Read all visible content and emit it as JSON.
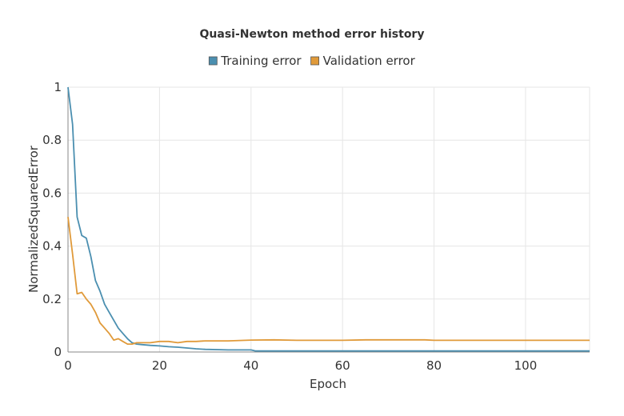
{
  "chart_data": {
    "type": "line",
    "title": "Quasi-Newton method error history",
    "xlabel": "Epoch",
    "ylabel": "NormalizedSquaredError",
    "xlim": [
      0,
      114
    ],
    "ylim": [
      0,
      1
    ],
    "x_ticks": [
      "0",
      "20",
      "40",
      "60",
      "80",
      "100"
    ],
    "y_ticks": [
      "0",
      "0.2",
      "0.4",
      "0.6",
      "0.8",
      "1"
    ],
    "grid": true,
    "legend_position": "top",
    "series": [
      {
        "name": "Training error",
        "color": "#4b8fb0",
        "x": [
          0,
          1,
          2,
          3,
          4,
          5,
          6,
          7,
          8,
          9,
          10,
          11,
          12,
          13,
          14,
          15,
          16,
          18,
          20,
          22,
          24,
          26,
          28,
          30,
          35,
          40,
          41,
          50,
          60,
          70,
          80,
          90,
          100,
          110,
          114
        ],
        "y": [
          1.0,
          0.86,
          0.51,
          0.44,
          0.43,
          0.36,
          0.27,
          0.23,
          0.18,
          0.15,
          0.12,
          0.09,
          0.07,
          0.05,
          0.035,
          0.03,
          0.028,
          0.025,
          0.023,
          0.02,
          0.018,
          0.015,
          0.012,
          0.01,
          0.008,
          0.008,
          0.004,
          0.004,
          0.004,
          0.004,
          0.004,
          0.004,
          0.004,
          0.004,
          0.004
        ]
      },
      {
        "name": "Validation error",
        "color": "#e09a3a",
        "x": [
          0,
          1,
          2,
          3,
          4,
          5,
          6,
          7,
          8,
          9,
          10,
          11,
          12,
          13,
          14,
          15,
          16,
          18,
          20,
          22,
          24,
          26,
          28,
          30,
          35,
          40,
          45,
          50,
          60,
          65,
          70,
          78,
          80,
          90,
          100,
          110,
          114
        ],
        "y": [
          0.51,
          0.37,
          0.22,
          0.225,
          0.2,
          0.18,
          0.15,
          0.11,
          0.09,
          0.07,
          0.045,
          0.05,
          0.04,
          0.03,
          0.03,
          0.035,
          0.035,
          0.035,
          0.04,
          0.04,
          0.035,
          0.04,
          0.04,
          0.042,
          0.042,
          0.045,
          0.046,
          0.044,
          0.044,
          0.046,
          0.046,
          0.046,
          0.044,
          0.044,
          0.044,
          0.044,
          0.044
        ]
      }
    ]
  }
}
